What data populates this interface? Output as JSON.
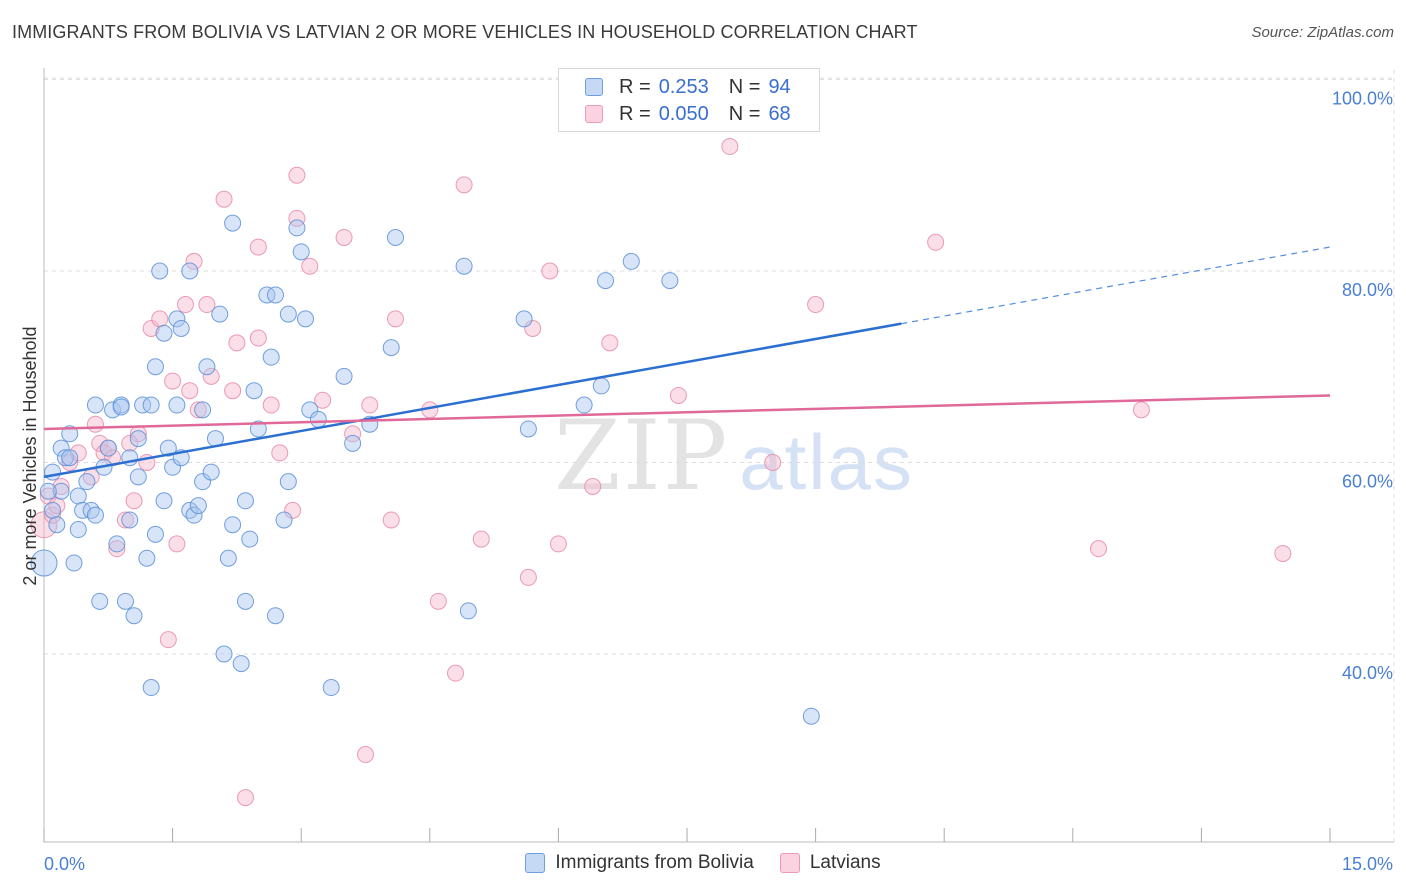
{
  "title": "IMMIGRANTS FROM BOLIVIA VS LATVIAN 2 OR MORE VEHICLES IN HOUSEHOLD CORRELATION CHART",
  "source": "Source: ZipAtlas.com",
  "watermark": {
    "zip": "ZIP",
    "atlas": "atlas"
  },
  "legend_top": [
    {
      "r_label": "R = ",
      "r_value": "0.253",
      "n_label": "N = ",
      "n_value": "94"
    },
    {
      "r_label": "R = ",
      "r_value": "0.050",
      "n_label": "N = ",
      "n_value": "68"
    }
  ],
  "legend_bottom": [
    "Immigrants from Bolivia",
    "Latvians"
  ],
  "colors": {
    "bolivia_fill": "#a9c6f0",
    "bolivia_stroke": "#5b8fd8",
    "bolivia_line": "#2b6fd1",
    "latvian_fill": "#f7b8cc",
    "latvian_stroke": "#e889a8",
    "latvian_line": "#e0699a",
    "tick_text": "#4a7fd4",
    "grid": "#dddddd"
  },
  "chart_data": {
    "type": "scatter",
    "title": "IMMIGRANTS FROM BOLIVIA VS LATVIAN 2 OR MORE VEHICLES IN HOUSEHOLD CORRELATION CHART",
    "xlabel": "",
    "ylabel": "2 or more Vehicles in Household",
    "xlim": [
      0,
      15
    ],
    "ylim": [
      20,
      102
    ],
    "x_tick_labels": [
      "0.0%",
      "15.0%"
    ],
    "y_ticks": [
      40,
      60,
      80,
      100
    ],
    "y_tick_labels": [
      "40.0%",
      "60.0%",
      "80.0%",
      "100.0%"
    ],
    "grid": true,
    "legend_placement": "top-center",
    "series": [
      {
        "name": "Immigrants from Bolivia",
        "points": [
          [
            0.0,
            49.5
          ],
          [
            0.1,
            59.0
          ],
          [
            0.1,
            55.0
          ],
          [
            0.15,
            53.5
          ],
          [
            0.2,
            57.0
          ],
          [
            0.2,
            61.5
          ],
          [
            0.25,
            60.5
          ],
          [
            0.3,
            63.0
          ],
          [
            0.35,
            49.5
          ],
          [
            0.4,
            53.0
          ],
          [
            0.4,
            56.5
          ],
          [
            0.45,
            55.0
          ],
          [
            0.5,
            58.0
          ],
          [
            0.55,
            55.0
          ],
          [
            0.6,
            66.0
          ],
          [
            0.65,
            45.5
          ],
          [
            0.7,
            59.5
          ],
          [
            0.75,
            61.5
          ],
          [
            0.8,
            65.5
          ],
          [
            0.85,
            51.5
          ],
          [
            0.9,
            66.0
          ],
          [
            0.9,
            65.8
          ],
          [
            0.95,
            45.5
          ],
          [
            1.0,
            54.0
          ],
          [
            1.0,
            60.5
          ],
          [
            1.05,
            44.0
          ],
          [
            1.1,
            62.5
          ],
          [
            1.15,
            66.0
          ],
          [
            1.2,
            50.0
          ],
          [
            1.25,
            36.5
          ],
          [
            1.25,
            66.0
          ],
          [
            1.3,
            52.5
          ],
          [
            1.3,
            70.0
          ],
          [
            1.35,
            80.0
          ],
          [
            1.4,
            73.5
          ],
          [
            1.45,
            61.5
          ],
          [
            1.5,
            59.5
          ],
          [
            1.55,
            66.0
          ],
          [
            1.55,
            75.0
          ],
          [
            1.6,
            60.5
          ],
          [
            1.6,
            74.0
          ],
          [
            1.7,
            80.0
          ],
          [
            1.7,
            55.0
          ],
          [
            1.75,
            54.5
          ],
          [
            1.8,
            55.5
          ],
          [
            1.85,
            58.0
          ],
          [
            1.85,
            65.5
          ],
          [
            1.9,
            70.0
          ],
          [
            1.95,
            59.0
          ],
          [
            2.05,
            75.5
          ],
          [
            2.1,
            40.0
          ],
          [
            2.15,
            50.0
          ],
          [
            2.2,
            85.0
          ],
          [
            2.2,
            53.5
          ],
          [
            2.3,
            39.0
          ],
          [
            2.35,
            56.0
          ],
          [
            2.35,
            45.5
          ],
          [
            2.4,
            52.0
          ],
          [
            2.45,
            67.5
          ],
          [
            2.5,
            63.5
          ],
          [
            2.6,
            77.5
          ],
          [
            2.65,
            71.0
          ],
          [
            2.7,
            44.0
          ],
          [
            2.8,
            54.0
          ],
          [
            2.85,
            58.0
          ],
          [
            2.85,
            75.5
          ],
          [
            2.95,
            84.5
          ],
          [
            3.0,
            82.0
          ],
          [
            3.05,
            75.0
          ],
          [
            3.1,
            65.5
          ],
          [
            3.2,
            64.5
          ],
          [
            3.35,
            36.5
          ],
          [
            3.5,
            69.0
          ],
          [
            3.8,
            64.0
          ],
          [
            4.05,
            72.0
          ],
          [
            4.1,
            83.5
          ],
          [
            4.9,
            80.5
          ],
          [
            4.95,
            44.5
          ],
          [
            5.6,
            75.0
          ],
          [
            5.65,
            63.5
          ],
          [
            6.3,
            66.0
          ],
          [
            6.5,
            68.0
          ],
          [
            6.55,
            79.0
          ],
          [
            6.85,
            81.0
          ],
          [
            7.3,
            79.0
          ],
          [
            8.95,
            33.5
          ],
          [
            0.05,
            57.0
          ],
          [
            0.3,
            60.5
          ],
          [
            0.6,
            54.5
          ],
          [
            1.1,
            58.5
          ],
          [
            1.4,
            56.0
          ],
          [
            2.0,
            62.5
          ],
          [
            2.7,
            77.5
          ],
          [
            3.6,
            62.0
          ]
        ]
      },
      {
        "name": "Latvians",
        "points": [
          [
            0.0,
            53.5
          ],
          [
            0.05,
            56.5
          ],
          [
            0.1,
            54.5
          ],
          [
            0.2,
            57.5
          ],
          [
            0.3,
            60.0
          ],
          [
            0.4,
            61.0
          ],
          [
            0.55,
            58.5
          ],
          [
            0.6,
            64.0
          ],
          [
            0.65,
            62.0
          ],
          [
            0.7,
            61.0
          ],
          [
            0.75,
            61.5
          ],
          [
            0.8,
            60.5
          ],
          [
            0.85,
            51.0
          ],
          [
            0.95,
            54.0
          ],
          [
            1.05,
            56.0
          ],
          [
            1.1,
            63.0
          ],
          [
            1.2,
            60.0
          ],
          [
            1.25,
            74.0
          ],
          [
            1.35,
            75.0
          ],
          [
            1.45,
            41.5
          ],
          [
            1.5,
            68.5
          ],
          [
            1.55,
            51.5
          ],
          [
            1.65,
            76.5
          ],
          [
            1.7,
            67.5
          ],
          [
            1.75,
            81.0
          ],
          [
            1.8,
            65.5
          ],
          [
            1.9,
            76.5
          ],
          [
            1.95,
            69.0
          ],
          [
            2.1,
            87.5
          ],
          [
            2.2,
            67.5
          ],
          [
            2.25,
            72.5
          ],
          [
            2.35,
            25.0
          ],
          [
            2.5,
            73.0
          ],
          [
            2.5,
            82.5
          ],
          [
            2.65,
            66.0
          ],
          [
            2.75,
            61.0
          ],
          [
            2.9,
            55.0
          ],
          [
            2.95,
            85.5
          ],
          [
            2.95,
            90.0
          ],
          [
            3.1,
            80.5
          ],
          [
            3.25,
            66.5
          ],
          [
            3.5,
            83.5
          ],
          [
            3.6,
            63.0
          ],
          [
            3.75,
            29.5
          ],
          [
            3.8,
            66.0
          ],
          [
            4.05,
            54.0
          ],
          [
            4.1,
            75.0
          ],
          [
            4.5,
            65.5
          ],
          [
            4.6,
            45.5
          ],
          [
            4.8,
            38.0
          ],
          [
            4.9,
            89.0
          ],
          [
            5.1,
            52.0
          ],
          [
            5.65,
            48.0
          ],
          [
            5.7,
            74.0
          ],
          [
            5.9,
            80.0
          ],
          [
            6.0,
            51.5
          ],
          [
            6.4,
            57.5
          ],
          [
            6.6,
            72.5
          ],
          [
            7.4,
            67.0
          ],
          [
            8.0,
            93.0
          ],
          [
            8.5,
            60.0
          ],
          [
            9.0,
            76.5
          ],
          [
            10.4,
            83.0
          ],
          [
            12.3,
            51.0
          ],
          [
            12.8,
            65.5
          ],
          [
            14.45,
            50.5
          ],
          [
            0.15,
            55.5
          ],
          [
            1.0,
            62.0
          ]
        ]
      }
    ],
    "trend_lines": [
      {
        "name": "Immigrants from Bolivia",
        "x": [
          0.0,
          10.0
        ],
        "y": [
          58.5,
          74.5
        ],
        "dashed_to": [
          15.0,
          82.5
        ]
      },
      {
        "name": "Latvians",
        "x": [
          0.0,
          15.0
        ],
        "y": [
          63.5,
          67.0
        ]
      }
    ]
  }
}
